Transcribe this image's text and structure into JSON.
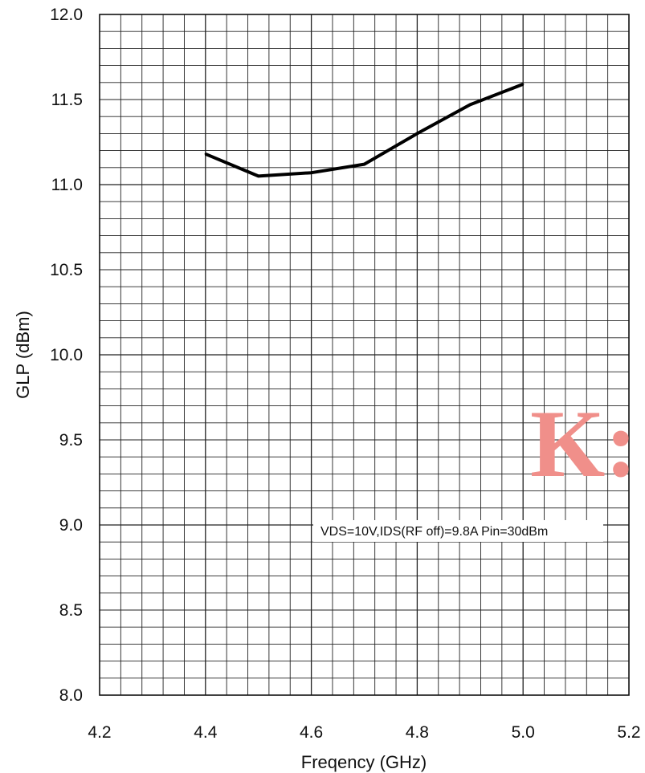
{
  "chart_data": {
    "type": "line",
    "title": "",
    "xlabel": "Freqency (GHz)",
    "ylabel": "GLP (dBm)",
    "xlim": [
      4.2,
      5.2
    ],
    "ylim": [
      8.0,
      12.0
    ],
    "x_ticks": [
      "4.2",
      "4.4",
      "4.6",
      "4.8",
      "5.0",
      "5.2"
    ],
    "y_ticks": [
      "8.0",
      "8.5",
      "9.0",
      "9.5",
      "10.0",
      "10.5",
      "11.0",
      "11.5",
      "12.0"
    ],
    "grid": true,
    "series": [
      {
        "color": "#000000",
        "x": [
          4.4,
          4.5,
          4.6,
          4.7,
          4.8,
          4.9,
          5.0
        ],
        "y": [
          11.18,
          11.05,
          11.07,
          11.12,
          11.3,
          11.47,
          11.59
        ]
      }
    ],
    "annotation": "VDS=10V,IDS(RF off)=9.8A Pin=30dBm"
  },
  "watermark": "K:"
}
